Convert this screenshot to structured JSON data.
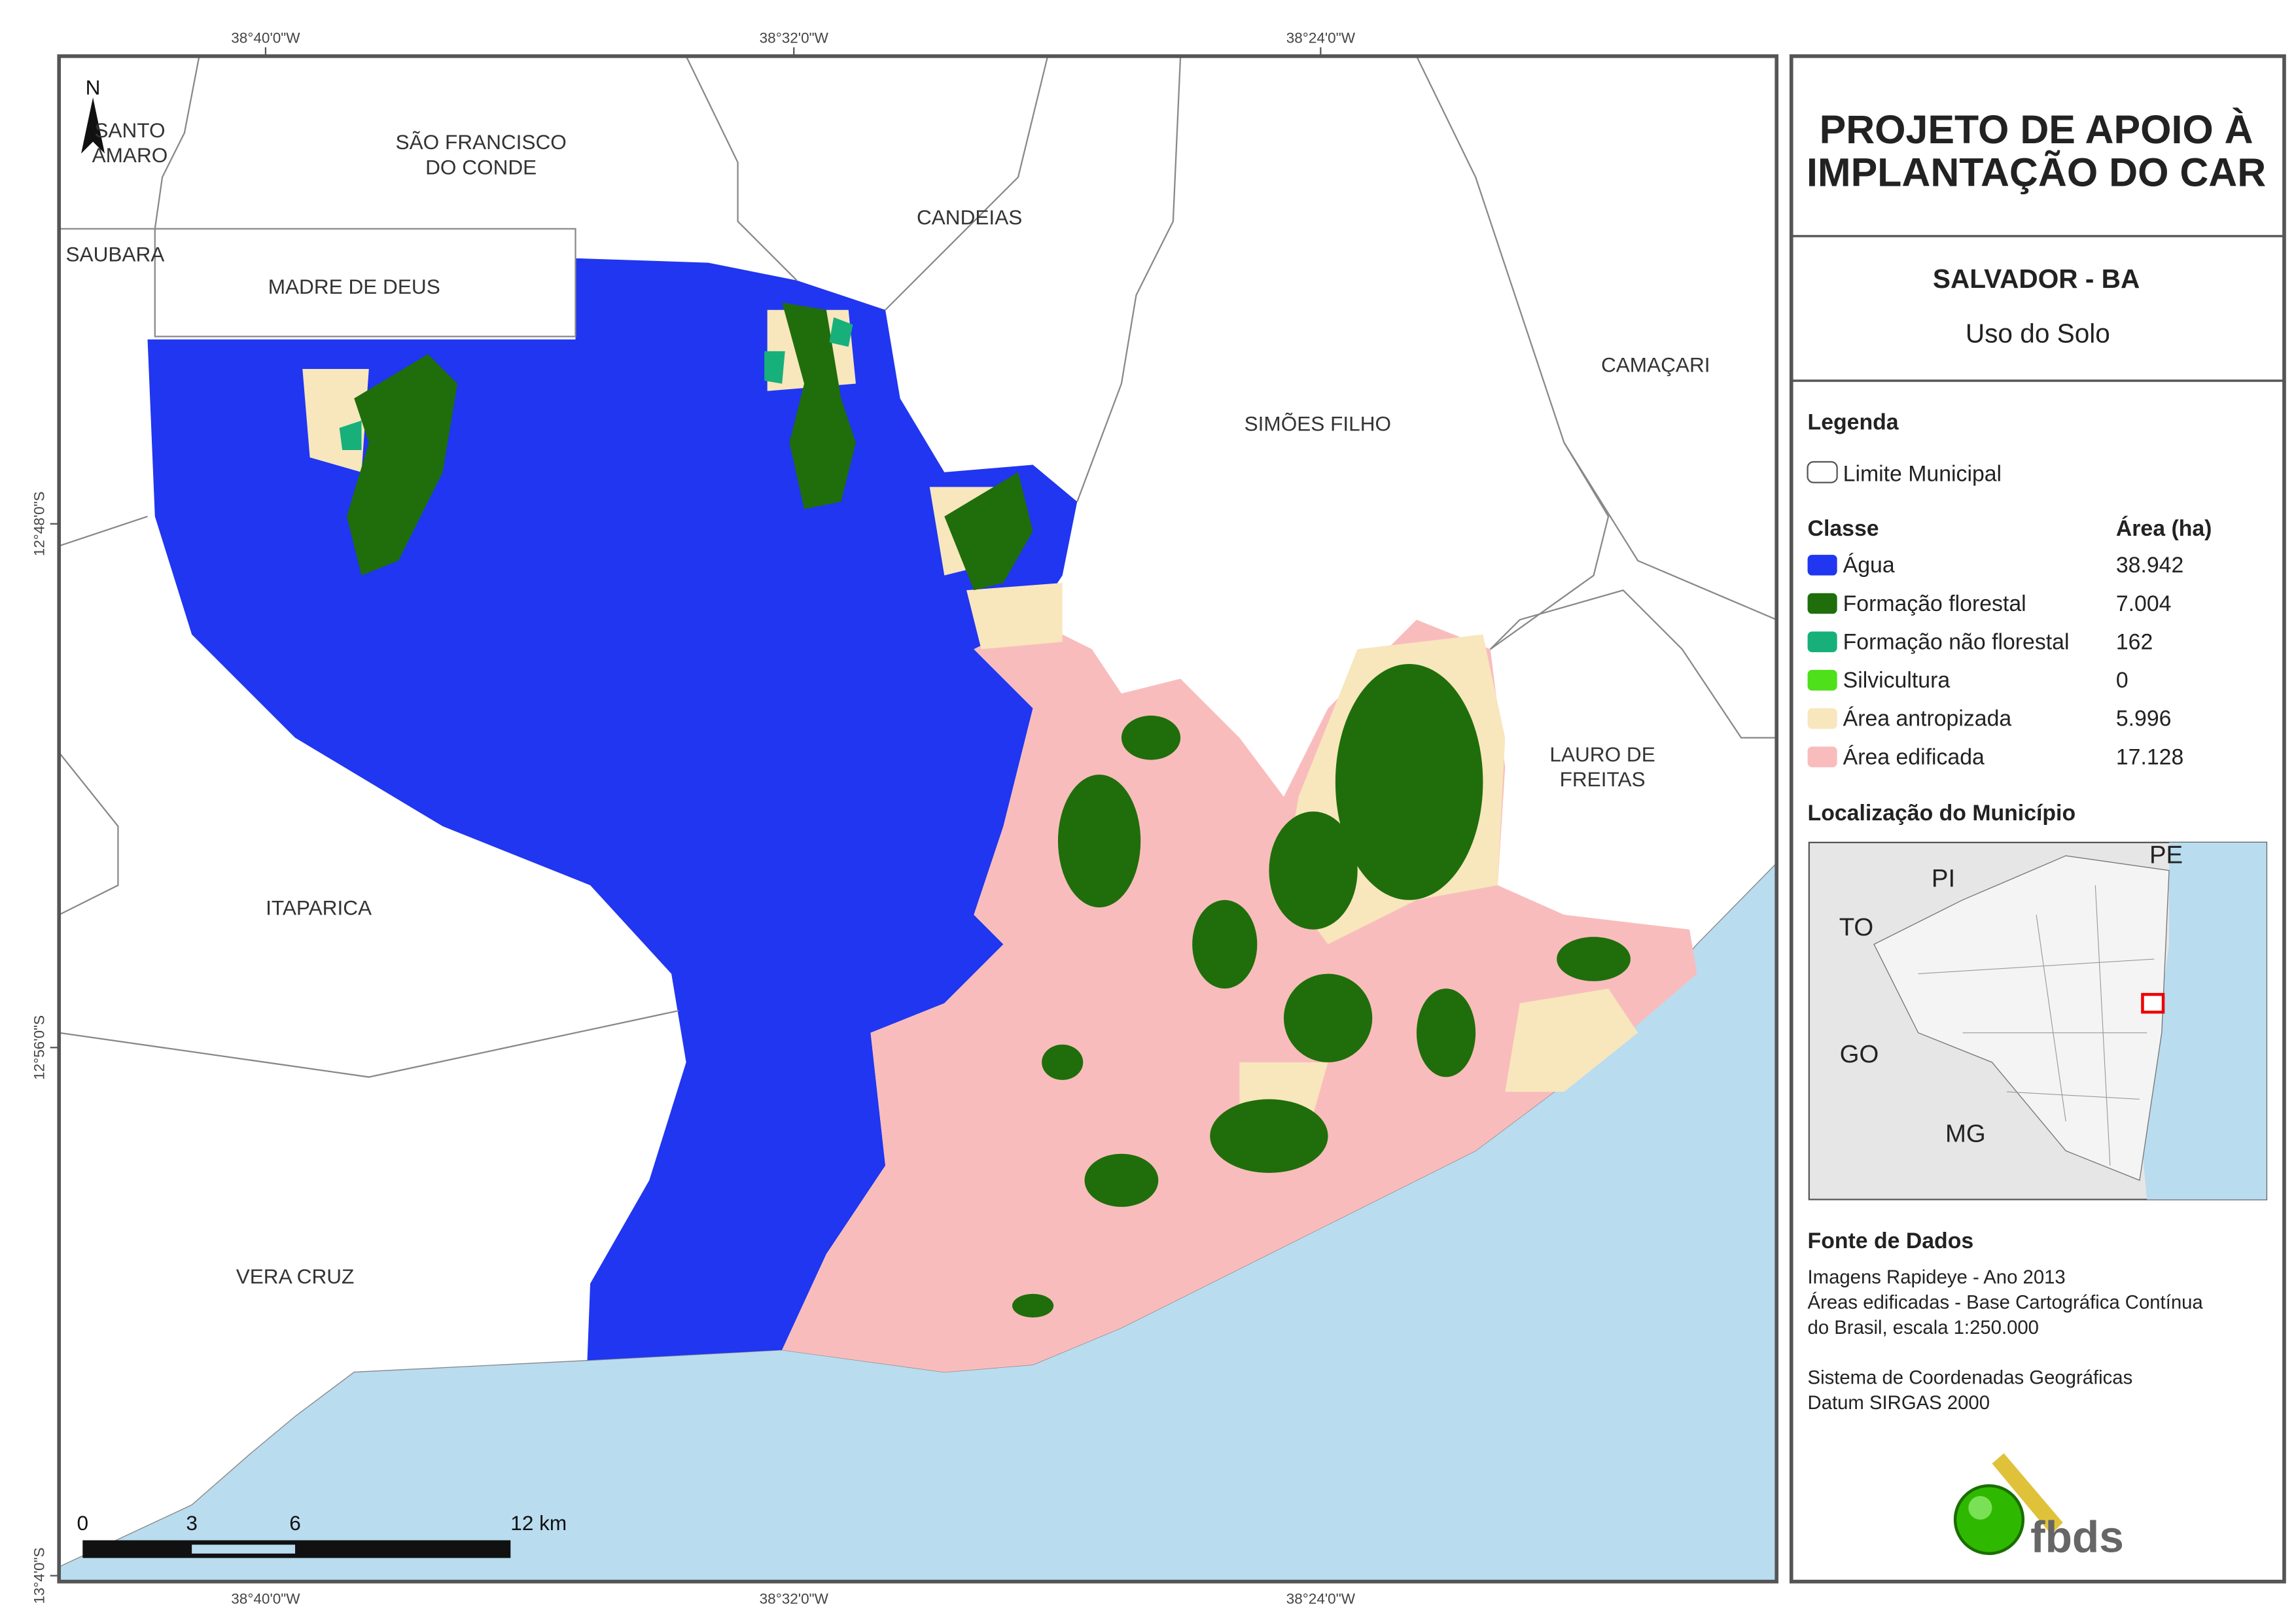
{
  "map": {
    "coordinates_top": [
      "38°40'0\"W",
      "38°32'0\"W",
      "38°24'0\"W"
    ],
    "coordinates_bottom": [
      "38°40'0\"W",
      "38°32'0\"W",
      "38°24'0\"W"
    ],
    "coordinates_left": [
      "12°48'0\"S",
      "12°56'0\"S",
      "13°4'0\"S"
    ],
    "north": "N",
    "places": [
      {
        "label": "SANTO",
        "label2": "AMARO"
      },
      {
        "label": "SÃO FRANCISCO",
        "label2": "DO CONDE"
      },
      {
        "label": "SAUBARA"
      },
      {
        "label": "MADRE DE DEUS"
      },
      {
        "label": "CANDEIAS"
      },
      {
        "label": "CAMAÇARI"
      },
      {
        "label": "SIMÕES FILHO"
      },
      {
        "label": "LAURO DE",
        "label2": "FREITAS"
      },
      {
        "label": "ITAPARICA"
      },
      {
        "label": "VERA CRUZ"
      }
    ],
    "scale_bar": [
      "0",
      "3",
      "6",
      "12 km"
    ]
  },
  "panel": {
    "title": [
      "PROJETO DE APOIO À",
      "IMPLANTAÇÃO DO CAR"
    ],
    "municipality": "SALVADOR - BA",
    "theme": "Uso do Solo",
    "legend_title": "Legenda",
    "boundary": "Limite Municipal",
    "class_header": "Classe",
    "area_header": "Área (ha)",
    "classes": [
      {
        "name": "Água",
        "area": "38.942",
        "color": "#2036f0"
      },
      {
        "name": "Formação florestal",
        "area": "7.004",
        "color": "#1f6e0b"
      },
      {
        "name": "Formação não florestal",
        "area": "162",
        "color": "#18b07a"
      },
      {
        "name": "Silvicultura",
        "area": "0",
        "color": "#4ee01a"
      },
      {
        "name": "Área antropizada",
        "area": "5.996",
        "color": "#f8e6bd"
      },
      {
        "name": "Área edificada",
        "area": "17.128",
        "color": "#f9bcbc"
      }
    ],
    "location_title": "Localização do Município",
    "location_labels": [
      "PI",
      "PE",
      "TO",
      "GO",
      "MG"
    ],
    "sources_title": "Fonte de Dados",
    "sources": [
      "Imagens Rapideye - Ano 2013",
      "Áreas edificadas - Base Cartográfica Contínua",
      "do Brasil, escala 1:250.000",
      "Sistema de Coordenadas Geográficas",
      "Datum SIRGAS 2000"
    ],
    "logo": "fbds"
  }
}
